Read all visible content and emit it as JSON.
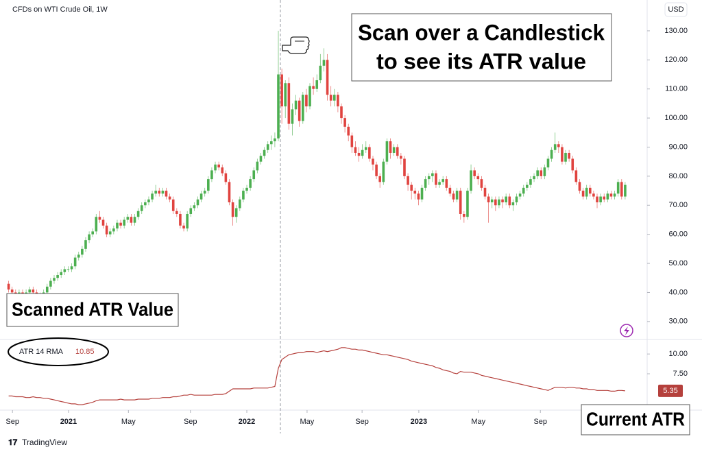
{
  "chart_data": {
    "type": "candlestick",
    "title": "CFDs on WTI Crude Oil, 1W",
    "currency": "USD",
    "up_color": "#4caf50",
    "down_color": "#e0433f",
    "ylim": [
      24.3,
      140.6
    ],
    "yticks": [
      {
        "value": 130,
        "label": "130.00"
      },
      {
        "value": 120,
        "label": "120.00"
      },
      {
        "value": 110,
        "label": "110.00"
      },
      {
        "value": 100,
        "label": "100.00"
      },
      {
        "value": 90,
        "label": "90.00"
      },
      {
        "value": 80,
        "label": "80.00"
      },
      {
        "value": 70,
        "label": "70.00"
      },
      {
        "value": 60,
        "label": "60.00"
      },
      {
        "value": 50,
        "label": "50.00"
      },
      {
        "value": 40,
        "label": "40.00"
      },
      {
        "value": 30,
        "label": "30.00"
      }
    ],
    "xlim": [
      0,
      182
    ],
    "xticks": [
      {
        "value": 1.6,
        "label": "Sep"
      },
      {
        "value": 17.6,
        "label": "2021"
      },
      {
        "value": 34.7,
        "label": "May"
      },
      {
        "value": 52.4,
        "label": "Sep"
      },
      {
        "value": 68.5,
        "label": "2022"
      },
      {
        "value": 85.7,
        "label": "May"
      },
      {
        "value": 101.4,
        "label": "Sep"
      },
      {
        "value": 117.6,
        "label": "2023"
      },
      {
        "value": 134.6,
        "label": "May"
      },
      {
        "value": 152.3,
        "label": "Sep"
      }
    ],
    "ohlc": [
      [
        43,
        44,
        40,
        41
      ],
      [
        41,
        42,
        39,
        40
      ],
      [
        40,
        41,
        38,
        39
      ],
      [
        39,
        41,
        38,
        40
      ],
      [
        40,
        41,
        38,
        39
      ],
      [
        39,
        41,
        38,
        40
      ],
      [
        40,
        42,
        39,
        41
      ],
      [
        41,
        42,
        39,
        40
      ],
      [
        40,
        41,
        37,
        38
      ],
      [
        38,
        40,
        37,
        39
      ],
      [
        39,
        41,
        38,
        40
      ],
      [
        40,
        43,
        39,
        42
      ],
      [
        42,
        45,
        41,
        44
      ],
      [
        44,
        46,
        43,
        45
      ],
      [
        45,
        47,
        44,
        46
      ],
      [
        46,
        48,
        45,
        47
      ],
      [
        47,
        49,
        46,
        48
      ],
      [
        48,
        49,
        47,
        48
      ],
      [
        48,
        50,
        47,
        49
      ],
      [
        49,
        53,
        48,
        52
      ],
      [
        52,
        54,
        51,
        53
      ],
      [
        53,
        56,
        52,
        55
      ],
      [
        55,
        59,
        54,
        58
      ],
      [
        58,
        61,
        57,
        60
      ],
      [
        60,
        62,
        59,
        61
      ],
      [
        61,
        67,
        60,
        66
      ],
      [
        66,
        68,
        64,
        65
      ],
      [
        65,
        66,
        62,
        63
      ],
      [
        63,
        64,
        59,
        60
      ],
      [
        60,
        62,
        59,
        61
      ],
      [
        61,
        63,
        60,
        62
      ],
      [
        62,
        65,
        61,
        64
      ],
      [
        64,
        65,
        62,
        63
      ],
      [
        63,
        66,
        62,
        65
      ],
      [
        65,
        67,
        64,
        66
      ],
      [
        66,
        67,
        63,
        64
      ],
      [
        64,
        67,
        63,
        66
      ],
      [
        66,
        69,
        65,
        68
      ],
      [
        68,
        71,
        67,
        70
      ],
      [
        70,
        72,
        69,
        71
      ],
      [
        71,
        73,
        70,
        72
      ],
      [
        72,
        75,
        71,
        74
      ],
      [
        74,
        77,
        73,
        75
      ],
      [
        75,
        76,
        73,
        74
      ],
      [
        74,
        76,
        73,
        75
      ],
      [
        75,
        76,
        72,
        73
      ],
      [
        73,
        74,
        71,
        72
      ],
      [
        72,
        73,
        67,
        68
      ],
      [
        68,
        69,
        66,
        67
      ],
      [
        67,
        68,
        62,
        63
      ],
      [
        63,
        64,
        61,
        62
      ],
      [
        62,
        68,
        61,
        67
      ],
      [
        67,
        70,
        66,
        69
      ],
      [
        69,
        71,
        68,
        70
      ],
      [
        70,
        73,
        69,
        72
      ],
      [
        72,
        75,
        71,
        74
      ],
      [
        74,
        76,
        73,
        75
      ],
      [
        75,
        80,
        74,
        79
      ],
      [
        79,
        83,
        78,
        82
      ],
      [
        82,
        85,
        81,
        84
      ],
      [
        84,
        85,
        82,
        83
      ],
      [
        83,
        84,
        80,
        81
      ],
      [
        81,
        82,
        77,
        78
      ],
      [
        78,
        79,
        70,
        71
      ],
      [
        71,
        72,
        63,
        66
      ],
      [
        66,
        70,
        64,
        69
      ],
      [
        69,
        73,
        68,
        72
      ],
      [
        72,
        76,
        71,
        75
      ],
      [
        75,
        77,
        74,
        76
      ],
      [
        76,
        80,
        75,
        79
      ],
      [
        79,
        83,
        78,
        82
      ],
      [
        82,
        86,
        81,
        85
      ],
      [
        85,
        88,
        84,
        87
      ],
      [
        87,
        90,
        86,
        89
      ],
      [
        89,
        92,
        88,
        91
      ],
      [
        91,
        94,
        89,
        92
      ],
      [
        92,
        95,
        90,
        93
      ],
      [
        93,
        130,
        92,
        115
      ],
      [
        115,
        117,
        98,
        104
      ],
      [
        104,
        113,
        100,
        112
      ],
      [
        112,
        114,
        96,
        98
      ],
      [
        98,
        105,
        94,
        103
      ],
      [
        103,
        108,
        101,
        106
      ],
      [
        106,
        107,
        97,
        99
      ],
      [
        99,
        109,
        98,
        108
      ],
      [
        108,
        110,
        102,
        104
      ],
      [
        104,
        112,
        103,
        111
      ],
      [
        111,
        114,
        108,
        110
      ],
      [
        110,
        115,
        109,
        113
      ],
      [
        113,
        122,
        112,
        118
      ],
      [
        118,
        124,
        116,
        120
      ],
      [
        120,
        122,
        106,
        108
      ],
      [
        108,
        111,
        104,
        106
      ],
      [
        106,
        110,
        104,
        108
      ],
      [
        108,
        109,
        102,
        104
      ],
      [
        104,
        105,
        98,
        100
      ],
      [
        100,
        101,
        95,
        97
      ],
      [
        97,
        98,
        92,
        94
      ],
      [
        94,
        95,
        88,
        90
      ],
      [
        90,
        92,
        87,
        88
      ],
      [
        88,
        90,
        85,
        87
      ],
      [
        87,
        91,
        86,
        89
      ],
      [
        89,
        92,
        88,
        90
      ],
      [
        90,
        91,
        85,
        86
      ],
      [
        86,
        87,
        82,
        84
      ],
      [
        84,
        85,
        79,
        80
      ],
      [
        80,
        81,
        76,
        78
      ],
      [
        78,
        86,
        77,
        85
      ],
      [
        85,
        93,
        84,
        92
      ],
      [
        92,
        93,
        86,
        88
      ],
      [
        88,
        91,
        87,
        90
      ],
      [
        90,
        91,
        86,
        87
      ],
      [
        87,
        88,
        84,
        86
      ],
      [
        86,
        87,
        79,
        80
      ],
      [
        80,
        81,
        75,
        77
      ],
      [
        77,
        78,
        72,
        75
      ],
      [
        75,
        76,
        72,
        74
      ],
      [
        74,
        75,
        70,
        72
      ],
      [
        72,
        77,
        71,
        76
      ],
      [
        76,
        80,
        75,
        79
      ],
      [
        79,
        81,
        77,
        80
      ],
      [
        80,
        82,
        78,
        81
      ],
      [
        81,
        82,
        76,
        77
      ],
      [
        77,
        79,
        76,
        78
      ],
      [
        78,
        80,
        77,
        79
      ],
      [
        79,
        80,
        75,
        76
      ],
      [
        76,
        77,
        73,
        74
      ],
      [
        74,
        75,
        71,
        72
      ],
      [
        72,
        76,
        71,
        75
      ],
      [
        75,
        76,
        65,
        67
      ],
      [
        67,
        68,
        64,
        66
      ],
      [
        66,
        76,
        65,
        75
      ],
      [
        75,
        84,
        74,
        82
      ],
      [
        82,
        83,
        79,
        80
      ],
      [
        80,
        81,
        77,
        79
      ],
      [
        79,
        80,
        75,
        76
      ],
      [
        76,
        77,
        72,
        73
      ],
      [
        73,
        74,
        64,
        71
      ],
      [
        71,
        73,
        69,
        72
      ],
      [
        72,
        73,
        68,
        70
      ],
      [
        70,
        73,
        69,
        72
      ],
      [
        72,
        73,
        69,
        71
      ],
      [
        71,
        74,
        70,
        73
      ],
      [
        73,
        74,
        69,
        70
      ],
      [
        70,
        72,
        68,
        71
      ],
      [
        71,
        74,
        70,
        73
      ],
      [
        73,
        75,
        72,
        74
      ],
      [
        74,
        77,
        73,
        76
      ],
      [
        76,
        78,
        75,
        77
      ],
      [
        77,
        80,
        76,
        79
      ],
      [
        79,
        81,
        78,
        80
      ],
      [
        80,
        83,
        79,
        82
      ],
      [
        82,
        83,
        79,
        80
      ],
      [
        80,
        84,
        79,
        83
      ],
      [
        83,
        87,
        82,
        86
      ],
      [
        86,
        90,
        85,
        89
      ],
      [
        89,
        95,
        88,
        91
      ],
      [
        91,
        92,
        88,
        90
      ],
      [
        90,
        91,
        84,
        85
      ],
      [
        85,
        89,
        84,
        88
      ],
      [
        88,
        89,
        85,
        86
      ],
      [
        86,
        87,
        81,
        82
      ],
      [
        82,
        83,
        77,
        78
      ],
      [
        78,
        79,
        74,
        75
      ],
      [
        75,
        76,
        72,
        73
      ],
      [
        73,
        77,
        72,
        76
      ],
      [
        76,
        77,
        73,
        74
      ],
      [
        74,
        75,
        72,
        73
      ],
      [
        73,
        74,
        69,
        71
      ],
      [
        71,
        74,
        70,
        73
      ],
      [
        73,
        74,
        71,
        72
      ],
      [
        72,
        75,
        71,
        74
      ],
      [
        74,
        75,
        72,
        73
      ],
      [
        73,
        75,
        72,
        74
      ],
      [
        74,
        79,
        73,
        78
      ],
      [
        78,
        79,
        72,
        73
      ],
      [
        73,
        78,
        72,
        77
      ]
    ],
    "atr": {
      "name": "ATR 14 RMA",
      "legend_value": 10.85,
      "color": "#b5403c",
      "ylim": [
        3.0,
        11.4
      ],
      "yticks": [
        {
          "value": 10,
          "label": "10.00"
        },
        {
          "value": 7.5,
          "label": "7.50"
        }
      ],
      "values": [
        4.7,
        4.7,
        4.6,
        4.6,
        4.6,
        4.5,
        4.5,
        4.6,
        4.5,
        4.5,
        4.4,
        4.4,
        4.3,
        4.2,
        4.1,
        4.0,
        3.9,
        3.8,
        3.7,
        3.7,
        3.6,
        3.6,
        3.7,
        3.8,
        3.9,
        4.1,
        4.2,
        4.2,
        4.2,
        4.2,
        4.2,
        4.2,
        4.3,
        4.2,
        4.2,
        4.2,
        4.2,
        4.3,
        4.3,
        4.3,
        4.3,
        4.4,
        4.4,
        4.4,
        4.5,
        4.5,
        4.5,
        4.6,
        4.6,
        4.7,
        4.8,
        4.8,
        4.9,
        4.8,
        4.8,
        4.8,
        4.8,
        4.8,
        4.8,
        4.9,
        4.9,
        4.9,
        5.0,
        5.3,
        5.6,
        5.6,
        5.6,
        5.6,
        5.6,
        5.6,
        5.7,
        5.7,
        5.7,
        5.7,
        5.7,
        5.8,
        5.9,
        8.2,
        9.3,
        9.6,
        9.9,
        10.0,
        10.1,
        10.2,
        10.2,
        10.3,
        10.3,
        10.3,
        10.2,
        10.3,
        10.4,
        10.3,
        10.4,
        10.5,
        10.6,
        10.8,
        10.8,
        10.7,
        10.6,
        10.6,
        10.5,
        10.5,
        10.4,
        10.3,
        10.2,
        10.1,
        10.0,
        9.9,
        9.9,
        9.8,
        9.7,
        9.6,
        9.5,
        9.4,
        9.3,
        9.1,
        9.0,
        8.9,
        8.8,
        8.7,
        8.6,
        8.5,
        8.3,
        8.2,
        8.0,
        7.9,
        7.8,
        7.6,
        7.5,
        7.8,
        7.7,
        7.7,
        7.7,
        7.6,
        7.5,
        7.3,
        7.2,
        7.1,
        7.0,
        6.9,
        6.8,
        6.7,
        6.6,
        6.5,
        6.4,
        6.3,
        6.2,
        6.1,
        6.0,
        5.9,
        5.8,
        5.7,
        5.6,
        5.5,
        5.4,
        5.6,
        5.8,
        5.8,
        5.8,
        5.7,
        5.8,
        5.8,
        5.7,
        5.7,
        5.6,
        5.6,
        5.5,
        5.5,
        5.4,
        5.4,
        5.4,
        5.4,
        5.3,
        5.3,
        5.4,
        5.4,
        5.35
      ]
    },
    "annotations": {
      "scan_hint": [
        "Scan over a Candlestick",
        "to see its ATR value"
      ],
      "scanned": "Scanned ATR Value",
      "current": "Current ATR"
    },
    "brand": "TradingView"
  }
}
